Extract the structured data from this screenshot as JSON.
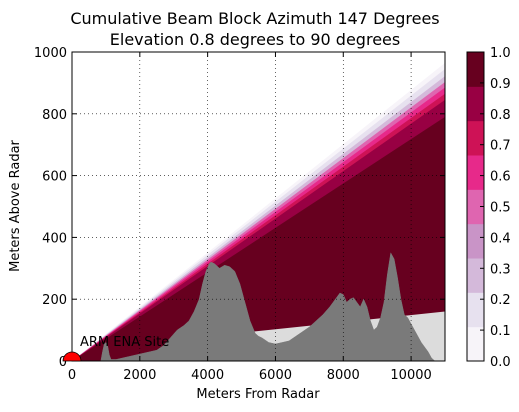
{
  "chart_data": {
    "type": "area",
    "title": "Cumulative Beam Block Azimuth 147 Degrees",
    "subtitle": "Elevation 0.8 degrees to 90 degrees",
    "xlabel": "Meters From Radar",
    "ylabel": "Meters Above Radar",
    "xlim": [
      0,
      11000
    ],
    "ylim": [
      0,
      1000
    ],
    "xticks": [
      0,
      2000,
      4000,
      6000,
      8000,
      10000
    ],
    "xtick_labels": [
      "0",
      "2000",
      "4000",
      "6000",
      "8000",
      "10000"
    ],
    "yticks": [
      0,
      200,
      400,
      600,
      800,
      1000
    ],
    "ytick_labels": [
      "0",
      "200",
      "400",
      "600",
      "800",
      "1000"
    ],
    "grid": true,
    "annotation": {
      "text": "ARM ENA Site",
      "x": 0,
      "y": 0,
      "marker_color": "#ff0000"
    },
    "colorbar": {
      "ticks": [
        0.0,
        0.1,
        0.2,
        0.3,
        0.4,
        0.5,
        0.6,
        0.7,
        0.8,
        0.9,
        1.0
      ],
      "tick_labels": [
        "0.0",
        "0.1",
        "0.2",
        "0.3",
        "0.4",
        "0.5",
        "0.6",
        "0.7",
        "0.8",
        "0.9",
        "1.0"
      ],
      "colors": [
        "#f7f4f9",
        "#e7e1ef",
        "#d4b9da",
        "#c994c7",
        "#df65b0",
        "#e7298a",
        "#ce1256",
        "#980043",
        "#67001f"
      ]
    },
    "beam_bands": [
      {
        "value": 0.05,
        "x": [
          0,
          11000
        ],
        "y": [
          0,
          965
        ]
      },
      {
        "value": 0.15,
        "x": [
          0,
          11000
        ],
        "y": [
          0,
          945
        ]
      },
      {
        "value": 0.3,
        "x": [
          0,
          11000
        ],
        "y": [
          0,
          922
        ]
      },
      {
        "value": 0.45,
        "x": [
          0,
          11000
        ],
        "y": [
          0,
          903
        ]
      },
      {
        "value": 0.6,
        "x": [
          0,
          11000
        ],
        "y": [
          0,
          885
        ]
      },
      {
        "value": 0.75,
        "x": [
          0,
          11000
        ],
        "y": [
          0,
          865
        ]
      },
      {
        "value": 0.85,
        "x": [
          0,
          11000
        ],
        "y": [
          0,
          845
        ]
      },
      {
        "value": 0.95,
        "x": [
          0,
          11000
        ],
        "y": [
          0,
          790
        ]
      }
    ],
    "full_block_floor": {
      "x": [
        4000,
        11000
      ],
      "y": [
        80,
        160
      ]
    },
    "series": [
      {
        "name": "Terrain",
        "color": "#7a7a7a",
        "x": [
          0,
          850,
          900,
          950,
          1000,
          1050,
          1100,
          1150,
          1300,
          1500,
          1700,
          1900,
          2100,
          2300,
          2500,
          2700,
          2900,
          3100,
          3300,
          3450,
          3600,
          3750,
          3850,
          3950,
          4050,
          4100,
          4200,
          4350,
          4500,
          4650,
          4800,
          4950,
          5100,
          5250,
          5400,
          5500,
          5600,
          5800,
          6000,
          6200,
          6400,
          6600,
          6800,
          7000,
          7200,
          7400,
          7600,
          7800,
          7900,
          8000,
          8100,
          8200,
          8300,
          8400,
          8500,
          8600,
          8700,
          8800,
          8900,
          9000,
          9100,
          9200,
          9300,
          9400,
          9500,
          9600,
          9700,
          9800,
          9900,
          10000,
          10100,
          10200,
          10300,
          10400,
          10500,
          10600,
          10700
        ],
        "y": [
          0,
          0,
          30,
          55,
          60,
          50,
          20,
          5,
          5,
          10,
          15,
          20,
          25,
          30,
          35,
          50,
          75,
          100,
          115,
          130,
          160,
          200,
          250,
          290,
          315,
          320,
          315,
          300,
          310,
          305,
          290,
          250,
          190,
          130,
          90,
          80,
          75,
          60,
          55,
          60,
          65,
          80,
          95,
          110,
          130,
          150,
          175,
          205,
          220,
          215,
          190,
          200,
          205,
          190,
          175,
          200,
          175,
          130,
          100,
          110,
          140,
          190,
          280,
          350,
          330,
          270,
          200,
          150,
          140,
          120,
          100,
          80,
          60,
          45,
          30,
          10,
          0
        ]
      }
    ]
  }
}
